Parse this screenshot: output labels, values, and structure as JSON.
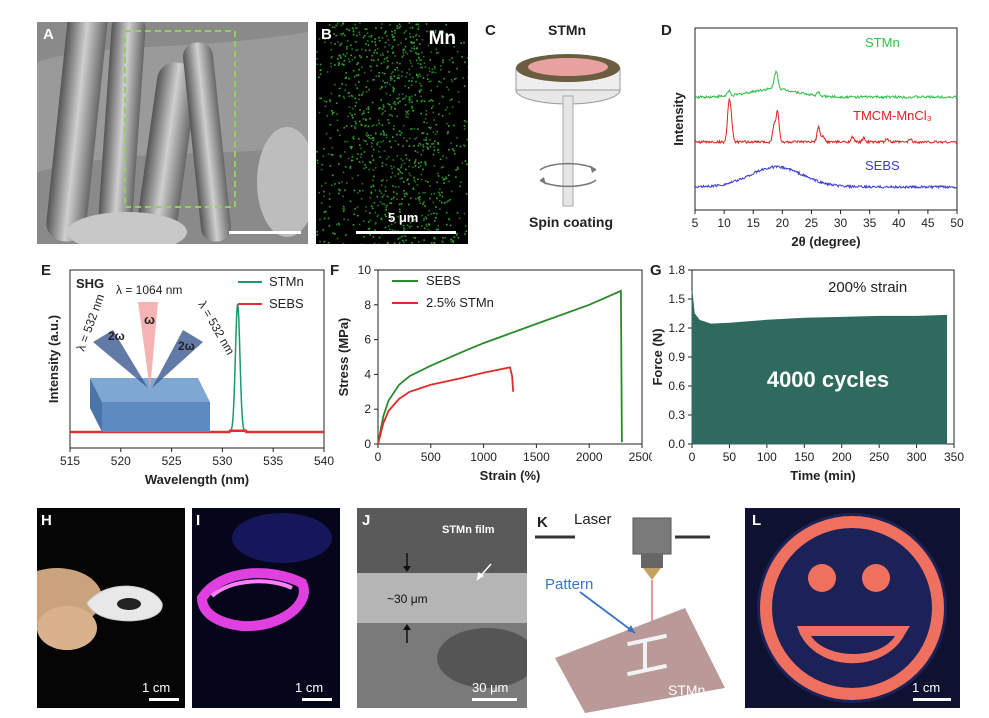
{
  "panels": {
    "A": {
      "label": "A"
    },
    "B": {
      "label": "B",
      "element": "Mn",
      "scalebar": "5 μm"
    },
    "C": {
      "label": "C",
      "title": "STMn",
      "caption": "Spin coating"
    },
    "D": {
      "label": "D"
    },
    "E": {
      "label": "E"
    },
    "F": {
      "label": "F"
    },
    "G": {
      "label": "G"
    },
    "H": {
      "label": "H",
      "scalebar": "1 cm"
    },
    "I": {
      "label": "I",
      "scalebar": "1 cm"
    },
    "J": {
      "label": "J",
      "film": "STMn film",
      "thickness": "~30 μm",
      "scalebar": "30 μm"
    },
    "K": {
      "label": "K",
      "laser": "Laser",
      "pattern": "Pattern",
      "material": "STMn"
    },
    "L": {
      "label": "L",
      "scalebar": "1 cm"
    }
  },
  "chart_data": [
    {
      "id": "D",
      "type": "line",
      "xlabel": "2θ (degree)",
      "ylabel": "Intensity",
      "xlim": [
        5,
        50
      ],
      "xticks": [
        5,
        10,
        15,
        20,
        25,
        30,
        35,
        40,
        45,
        50
      ],
      "series": [
        {
          "name": "STMn",
          "color": "#2fbf4a",
          "peaks": [
            [
              10.8,
              0.5
            ],
            [
              18.7,
              1.0
            ],
            [
              19.1,
              1.3
            ],
            [
              26.2,
              0.3
            ]
          ]
        },
        {
          "name": "TMCM-MnCl₃",
          "color": "#e02020",
          "peaks": [
            [
              10.8,
              3.4
            ],
            [
              11.2,
              2.2
            ],
            [
              18.6,
              1.8
            ],
            [
              19.2,
              3.0
            ],
            [
              26.2,
              1.5
            ],
            [
              27,
              0.6
            ],
            [
              32,
              0.5
            ],
            [
              34,
              0.4
            ],
            [
              38,
              0.3
            ],
            [
              42,
              0.3
            ]
          ]
        },
        {
          "name": "SEBS",
          "color": "#3a3ad0",
          "peaks": [
            [
              19,
              2.0
            ]
          ]
        }
      ]
    },
    {
      "id": "E",
      "type": "line",
      "title": "SHG",
      "xlabel": "Wavelength (nm)",
      "ylabel": "Intensity (a.u.)",
      "xlim": [
        515,
        540
      ],
      "xticks": [
        515,
        520,
        525,
        530,
        535,
        540
      ],
      "annotations": [
        "λ = 1064 nm",
        "λ = 532 nm",
        "λ = 532 nm",
        "ω",
        "2ω",
        "2ω"
      ],
      "series": [
        {
          "name": "STMn",
          "color": "#1a9a6a",
          "peak_x": 531.5,
          "peak_y": 1.0
        },
        {
          "name": "SEBS",
          "color": "#e03030",
          "peak_x": 531.5,
          "peak_y": 0.0
        }
      ]
    },
    {
      "id": "F",
      "type": "line",
      "xlabel": "Strain (%)",
      "ylabel": "Stress (MPa)",
      "xlim": [
        0,
        2500
      ],
      "ylim": [
        0,
        10
      ],
      "xticks": [
        0,
        500,
        1000,
        1500,
        2000,
        2500
      ],
      "yticks": [
        0,
        2,
        4,
        6,
        8,
        10
      ],
      "series": [
        {
          "name": "SEBS",
          "color": "#2a8a2a",
          "points": [
            [
              0,
              0
            ],
            [
              50,
              1.6
            ],
            [
              100,
              2.5
            ],
            [
              200,
              3.4
            ],
            [
              300,
              3.9
            ],
            [
              500,
              4.5
            ],
            [
              800,
              5.3
            ],
            [
              1000,
              5.8
            ],
            [
              1500,
              6.9
            ],
            [
              2000,
              8.0
            ],
            [
              2300,
              8.8
            ],
            [
              2310,
              0.1
            ]
          ]
        },
        {
          "name": "2.5% STMn",
          "color": "#e02a2a",
          "points": [
            [
              0,
              0
            ],
            [
              50,
              1.2
            ],
            [
              100,
              1.9
            ],
            [
              200,
              2.6
            ],
            [
              300,
              3.0
            ],
            [
              500,
              3.4
            ],
            [
              800,
              3.8
            ],
            [
              1000,
              4.1
            ],
            [
              1250,
              4.4
            ],
            [
              1270,
              3.9
            ],
            [
              1280,
              3.0
            ]
          ]
        }
      ]
    },
    {
      "id": "G",
      "type": "area",
      "xlabel": "Time (min)",
      "ylabel": "Force (N)",
      "xlim": [
        0,
        350
      ],
      "ylim": [
        0,
        1.8
      ],
      "xticks": [
        0,
        50,
        100,
        150,
        200,
        250,
        300,
        350
      ],
      "yticks": [
        0.0,
        0.3,
        0.6,
        0.9,
        1.2,
        1.5,
        1.8
      ],
      "annotations": [
        "200% strain",
        "4000 cycles"
      ],
      "color": "#2e6b5e",
      "points": [
        [
          0,
          1.58
        ],
        [
          3,
          1.35
        ],
        [
          10,
          1.28
        ],
        [
          25,
          1.24
        ],
        [
          50,
          1.25
        ],
        [
          100,
          1.28
        ],
        [
          150,
          1.3
        ],
        [
          200,
          1.31
        ],
        [
          250,
          1.32
        ],
        [
          300,
          1.32
        ],
        [
          340,
          1.33
        ]
      ]
    }
  ]
}
